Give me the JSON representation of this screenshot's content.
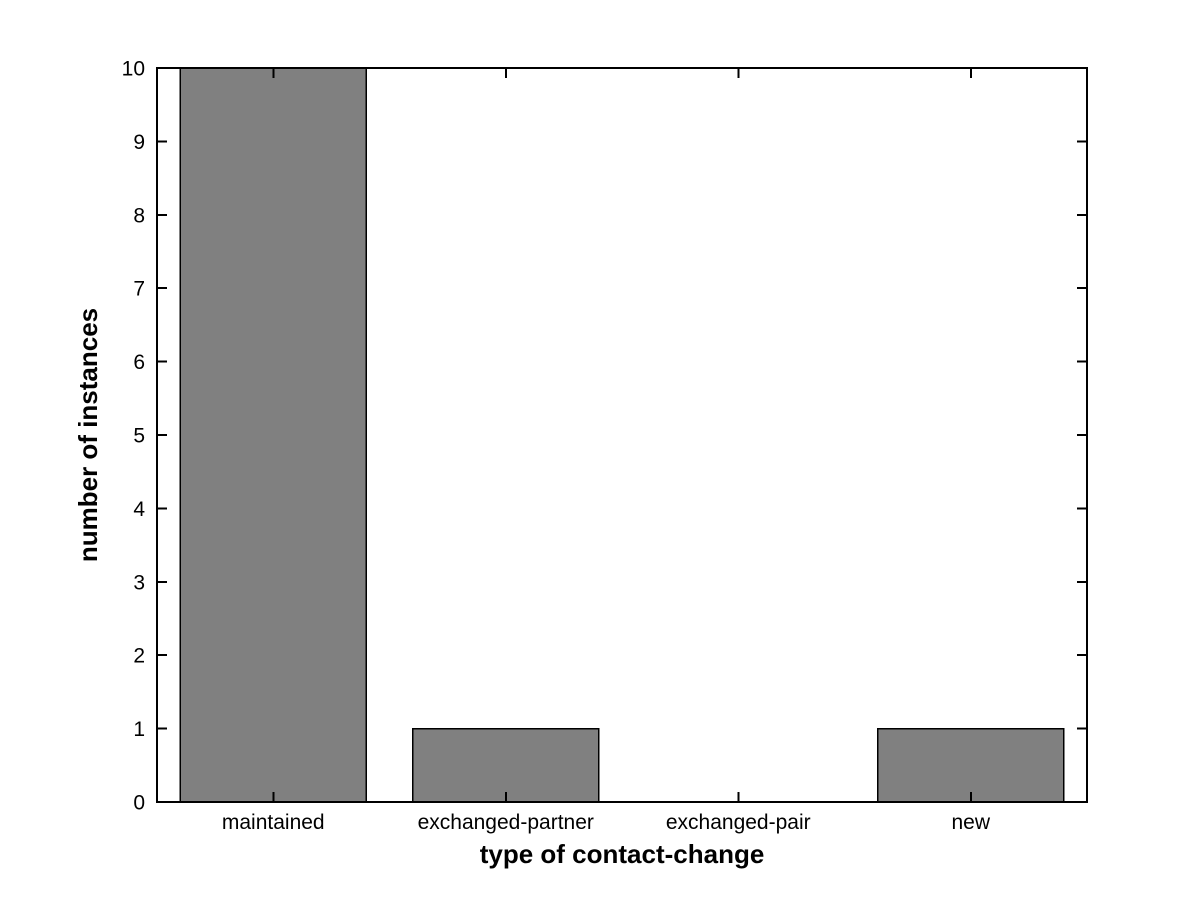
{
  "chart_data": {
    "type": "bar",
    "categories": [
      "maintained",
      "exchanged-partner",
      "exchanged-pair",
      "new"
    ],
    "values": [
      10,
      1,
      0,
      1
    ],
    "title": "",
    "xlabel": "type of contact-change",
    "ylabel": "number of instances",
    "ylim": [
      0,
      10
    ],
    "yticks": [
      0,
      1,
      2,
      3,
      4,
      5,
      6,
      7,
      8,
      9,
      10
    ],
    "bar_width_fraction": 0.8,
    "legend": "none",
    "grid": false,
    "box": true,
    "tick_direction": "in",
    "colors": {
      "bar_fill": "#808080",
      "bar_edge": "#000000",
      "axis": "#000000",
      "text": "#000000",
      "background": "#ffffff"
    }
  }
}
